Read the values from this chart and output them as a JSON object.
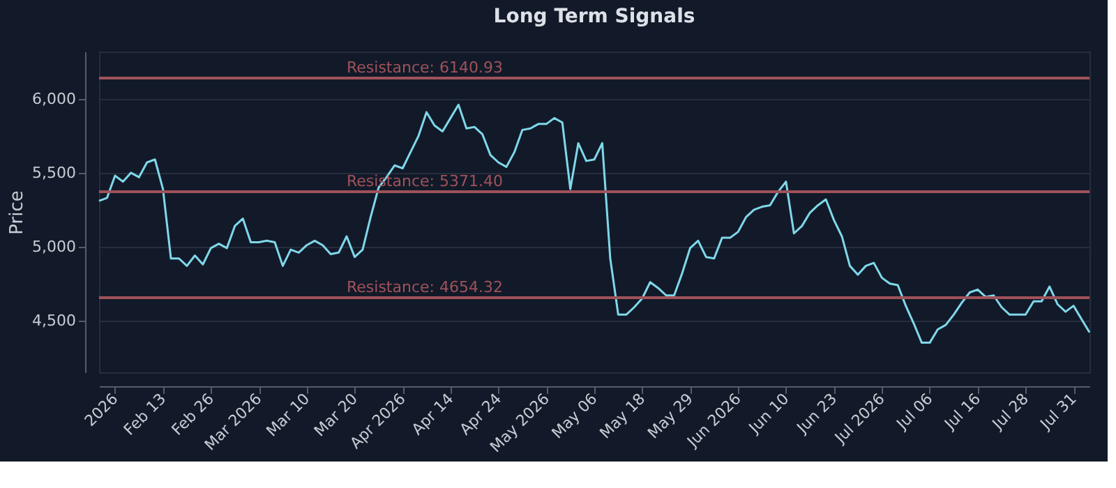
{
  "chart_data": {
    "type": "line",
    "title": "Long Term Signals",
    "ylabel": "Price",
    "categories": [
      null,
      null,
      "2026",
      null,
      null,
      null,
      null,
      null,
      "Feb 13",
      null,
      null,
      null,
      null,
      null,
      "Feb 26",
      null,
      null,
      null,
      null,
      null,
      "Mar 2026",
      null,
      null,
      null,
      null,
      null,
      "Mar 10",
      null,
      null,
      null,
      null,
      null,
      "Mar 20",
      null,
      null,
      null,
      null,
      null,
      "Apr 2026",
      null,
      null,
      null,
      null,
      null,
      "Apr 14",
      null,
      null,
      null,
      null,
      null,
      "Apr 24",
      null,
      null,
      null,
      null,
      null,
      "May 2026",
      null,
      null,
      null,
      null,
      null,
      "May 06",
      null,
      null,
      null,
      null,
      null,
      "May 18",
      null,
      null,
      null,
      null,
      null,
      "May 29",
      null,
      null,
      null,
      null,
      null,
      "Jun 2026",
      null,
      null,
      null,
      null,
      null,
      "Jun 10",
      null,
      null,
      null,
      null,
      null,
      "Jun 23",
      null,
      null,
      null,
      null,
      null,
      "Jul 2026",
      null,
      null,
      null,
      null,
      null,
      "Jul 06",
      null,
      null,
      null,
      null,
      null,
      "Jul 16",
      null,
      null,
      null,
      null,
      null,
      "Jul 28",
      null,
      null,
      null,
      null,
      null,
      "Jul 31",
      null,
      null
    ],
    "series": [
      {
        "color": "#7fd8ea",
        "values": [
          5310,
          5330,
          5480,
          5440,
          5500,
          5470,
          5570,
          5590,
          5390,
          4920,
          4920,
          4870,
          4940,
          4880,
          4990,
          5020,
          4990,
          5140,
          5190,
          5030,
          5030,
          5040,
          5030,
          4870,
          4980,
          4960,
          5010,
          5040,
          5010,
          4950,
          4960,
          5070,
          4930,
          4980,
          5200,
          5400,
          5470,
          5550,
          5530,
          5640,
          5750,
          5910,
          5820,
          5780,
          5870,
          5960,
          5800,
          5810,
          5760,
          5620,
          5570,
          5540,
          5640,
          5790,
          5800,
          5830,
          5830,
          5870,
          5840,
          5390,
          5700,
          5580,
          5590,
          5700,
          4920,
          4540,
          4540,
          4590,
          4650,
          4760,
          4720,
          4670,
          4670,
          4820,
          4990,
          5040,
          4930,
          4920,
          5060,
          5060,
          5100,
          5200,
          5250,
          5270,
          5280,
          5370,
          5440,
          5090,
          5140,
          5230,
          5280,
          5320,
          5180,
          5070,
          4870,
          4810,
          4870,
          4890,
          4790,
          4750,
          4740,
          4600,
          4480,
          4350,
          4350,
          4440,
          4470,
          4540,
          4620,
          4690,
          4710,
          4660,
          4670,
          4590,
          4540,
          4540,
          4540,
          4630,
          4630,
          4730,
          4610,
          4560,
          4600,
          4510,
          4420
        ]
      }
    ],
    "ylim": [
      4150,
      6320
    ],
    "yticks": [
      {
        "value": 4500,
        "label": "4,500"
      },
      {
        "value": 5000,
        "label": "5,000"
      },
      {
        "value": 5500,
        "label": "5,500"
      },
      {
        "value": 6000,
        "label": "6,000"
      }
    ],
    "grid": "y",
    "line_style": "solid",
    "marker": "none",
    "ref_lines": [
      {
        "axis": "y",
        "value": 6140.93,
        "label": "Resistance: 6140.93",
        "color": "#a0525a"
      },
      {
        "axis": "y",
        "value": 5371.4,
        "label": "Resistance: 5371.40",
        "color": "#a0525a"
      },
      {
        "axis": "y",
        "value": 4654.32,
        "label": "Resistance: 4654.32",
        "color": "#a0525a"
      }
    ]
  }
}
